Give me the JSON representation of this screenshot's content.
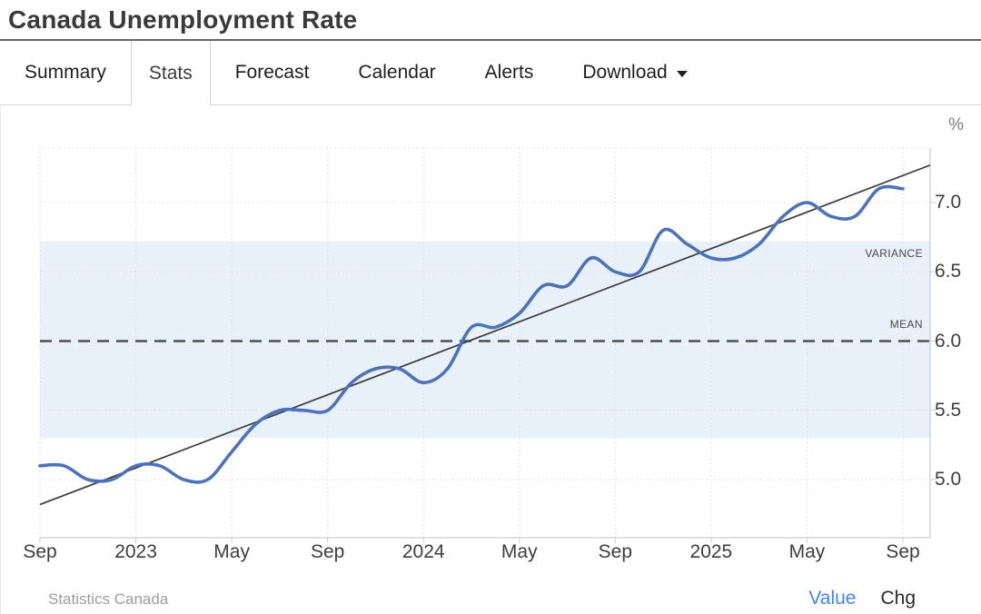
{
  "header": {
    "title": "Canada Unemployment Rate"
  },
  "tabs": {
    "items": [
      {
        "label": "Summary",
        "active": false
      },
      {
        "label": "Stats",
        "active": true
      },
      {
        "label": "Forecast",
        "active": false
      },
      {
        "label": "Calendar",
        "active": false
      },
      {
        "label": "Alerts",
        "active": false
      },
      {
        "label": "Download",
        "active": false,
        "has_dropdown": true
      }
    ]
  },
  "chart_data": {
    "type": "line",
    "title": "Canada Unemployment Rate",
    "series_name": "Unemployment Rate",
    "unit": "%",
    "x": [
      "Sep 2022",
      "Oct 2022",
      "Nov 2022",
      "Dec 2022",
      "Jan 2023",
      "Feb 2023",
      "Mar 2023",
      "Apr 2023",
      "May 2023",
      "Jun 2023",
      "Jul 2023",
      "Aug 2023",
      "Sep 2023",
      "Oct 2023",
      "Nov 2023",
      "Dec 2023",
      "Jan 2024",
      "Feb 2024",
      "Mar 2024",
      "Apr 2024",
      "May 2024",
      "Jun 2024",
      "Jul 2024",
      "Aug 2024",
      "Sep 2024",
      "Oct 2024",
      "Nov 2024",
      "Dec 2024",
      "Jan 2025",
      "Feb 2025",
      "Mar 2025",
      "Apr 2025",
      "May 2025",
      "Jun 2025",
      "Jul 2025",
      "Aug 2025",
      "Sep 2025"
    ],
    "values": [
      5.1,
      5.1,
      5.0,
      5.0,
      5.1,
      5.1,
      5.0,
      5.0,
      5.2,
      5.4,
      5.5,
      5.5,
      5.5,
      5.7,
      5.8,
      5.8,
      5.7,
      5.8,
      6.1,
      6.1,
      6.2,
      6.4,
      6.4,
      6.6,
      6.5,
      6.5,
      6.8,
      6.7,
      6.6,
      6.6,
      6.7,
      6.9,
      7.0,
      6.9,
      6.9,
      7.1,
      7.1
    ],
    "x_tick_labels": [
      "Sep",
      "2023",
      "May",
      "Sep",
      "2024",
      "May",
      "Sep",
      "2025",
      "May",
      "Sep"
    ],
    "x_tick_positions": [
      0,
      4,
      8,
      12,
      16,
      20,
      24,
      28,
      32,
      36
    ],
    "y_ticks": [
      "5.0",
      "5.5",
      "6.0",
      "6.5",
      "7.0"
    ],
    "y_tick_values": [
      5.0,
      5.5,
      6.0,
      6.5,
      7.0
    ],
    "ylim": [
      4.58,
      7.39
    ],
    "mean": 6.0,
    "mean_label": "MEAN",
    "variance_band": [
      5.3,
      6.72
    ],
    "variance_label": "VARIANCE",
    "trend_line": {
      "start_value": 4.82,
      "end_value": 7.27
    },
    "grid": "dotted",
    "legend_position": "none",
    "line_style": "smooth-spline",
    "colors": {
      "series": "#4c72b8",
      "variance_band": "#e8f1fa",
      "mean_line": "#4f4f4f",
      "trend_line": "#3b3b3b",
      "gridline": "#dcdcdc",
      "axis_border": "#cfcfcf",
      "tick_label": "#3d3d3d"
    }
  },
  "footer": {
    "source": "Statistics Canada",
    "value_label": "Value",
    "chg_label": "Chg",
    "value_active": true,
    "value_active_color": "#4285f4"
  }
}
